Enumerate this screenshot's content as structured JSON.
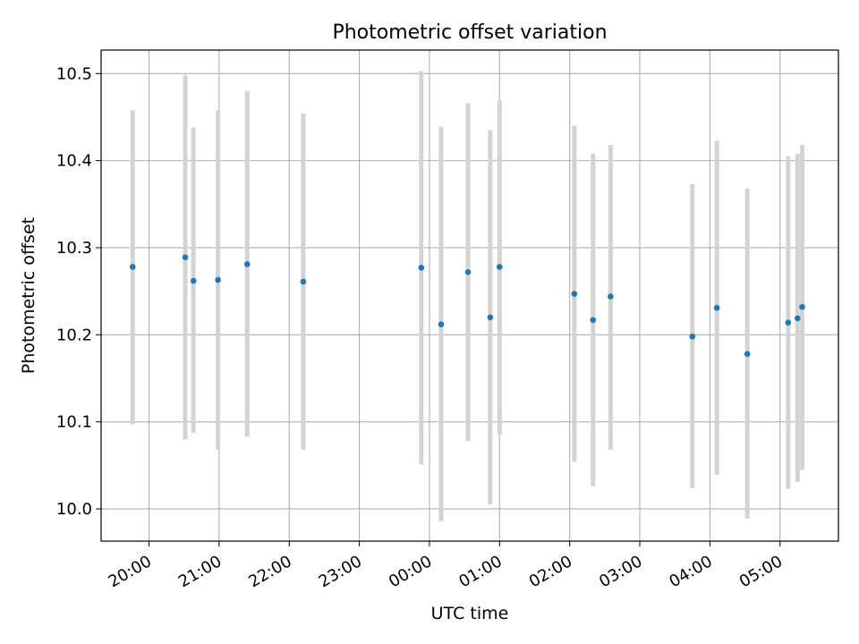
{
  "chart_data": {
    "type": "scatter",
    "title": "Photometric offset variation",
    "xlabel": "UTC time",
    "ylabel": "Photometric offset",
    "x_axis_kind": "time (HH:MM)",
    "xlim": [
      "19:19",
      "05:50"
    ],
    "ylim": [
      9.963,
      10.527
    ],
    "grid": true,
    "point_color": "#1f77b4",
    "errorbar_color": "#d3d3d3",
    "x_ticks": [
      "20:00",
      "21:00",
      "22:00",
      "23:00",
      "00:00",
      "01:00",
      "02:00",
      "03:00",
      "04:00",
      "05:00"
    ],
    "y_ticks": [
      "10.0",
      "10.1",
      "10.2",
      "10.3",
      "10.4",
      "10.5"
    ],
    "series": [
      {
        "points": [
          {
            "x": "19:46",
            "y": 10.278,
            "ylow": 10.097,
            "yhigh": 10.458
          },
          {
            "x": "20:31",
            "y": 10.289,
            "ylow": 10.08,
            "yhigh": 10.498
          },
          {
            "x": "20:38",
            "y": 10.262,
            "ylow": 10.087,
            "yhigh": 10.438
          },
          {
            "x": "20:59",
            "y": 10.263,
            "ylow": 10.068,
            "yhigh": 10.458
          },
          {
            "x": "21:24",
            "y": 10.281,
            "ylow": 10.083,
            "yhigh": 10.48
          },
          {
            "x": "22:12",
            "y": 10.261,
            "ylow": 10.068,
            "yhigh": 10.454
          },
          {
            "x": "23:53",
            "y": 10.277,
            "ylow": 10.051,
            "yhigh": 10.503
          },
          {
            "x": "00:10",
            "y": 10.212,
            "ylow": 9.986,
            "yhigh": 10.439
          },
          {
            "x": "00:33",
            "y": 10.272,
            "ylow": 10.078,
            "yhigh": 10.466
          },
          {
            "x": "00:52",
            "y": 10.22,
            "ylow": 10.005,
            "yhigh": 10.435
          },
          {
            "x": "01:00",
            "y": 10.278,
            "ylow": 10.085,
            "yhigh": 10.469
          },
          {
            "x": "02:04",
            "y": 10.247,
            "ylow": 10.054,
            "yhigh": 10.44
          },
          {
            "x": "02:20",
            "y": 10.217,
            "ylow": 10.026,
            "yhigh": 10.408
          },
          {
            "x": "02:35",
            "y": 10.244,
            "ylow": 10.068,
            "yhigh": 10.418
          },
          {
            "x": "03:45",
            "y": 10.198,
            "ylow": 10.024,
            "yhigh": 10.373
          },
          {
            "x": "04:06",
            "y": 10.231,
            "ylow": 10.039,
            "yhigh": 10.423
          },
          {
            "x": "04:32",
            "y": 10.178,
            "ylow": 9.989,
            "yhigh": 10.368
          },
          {
            "x": "05:07",
            "y": 10.214,
            "ylow": 10.023,
            "yhigh": 10.405
          },
          {
            "x": "05:15",
            "y": 10.219,
            "ylow": 10.031,
            "yhigh": 10.408
          },
          {
            "x": "05:19",
            "y": 10.232,
            "ylow": 10.045,
            "yhigh": 10.418
          }
        ]
      }
    ]
  }
}
